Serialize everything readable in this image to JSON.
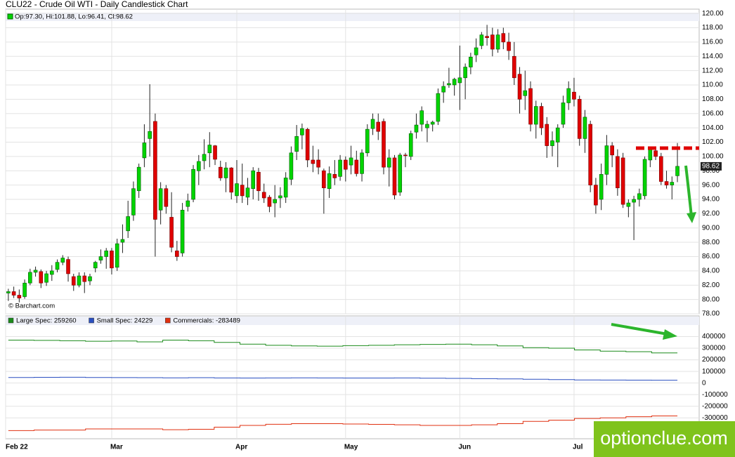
{
  "chart_data": [
    {
      "type": "candlestick",
      "title": "CLU22 - Crude Oil WTI - Daily Candlestick Chart",
      "ohlc_label": "Op:97.30, Hi:101.88, Lo:96.41, Cl:98.62",
      "last_price_label": "98.62",
      "credit": "© Barchart.com",
      "up_color": "#00d400",
      "down_color": "#e00000",
      "grid": true,
      "xlim": [
        -0.5,
        127
      ],
      "ylim": [
        78,
        120.6
      ],
      "yticks": [
        {
          "value": 120,
          "label": "120.00"
        },
        {
          "value": 118,
          "label": "118.00"
        },
        {
          "value": 116,
          "label": "116.00"
        },
        {
          "value": 114,
          "label": "114.00"
        },
        {
          "value": 112,
          "label": "112.00"
        },
        {
          "value": 110,
          "label": "110.00"
        },
        {
          "value": 108,
          "label": "108.00"
        },
        {
          "value": 106,
          "label": "106.00"
        },
        {
          "value": 104,
          "label": "104.00"
        },
        {
          "value": 102,
          "label": "102.00"
        },
        {
          "value": 100,
          "label": "100.00"
        },
        {
          "value": 98,
          "label": "98.00"
        },
        {
          "value": 96,
          "label": "96.00"
        },
        {
          "value": 94,
          "label": "94.00"
        },
        {
          "value": 92,
          "label": "92.00"
        },
        {
          "value": 90,
          "label": "90.00"
        },
        {
          "value": 88,
          "label": "88.00"
        },
        {
          "value": 86,
          "label": "86.00"
        },
        {
          "value": 84,
          "label": "84.00"
        },
        {
          "value": 82,
          "label": "82.00"
        },
        {
          "value": 80,
          "label": "80.00"
        },
        {
          "value": 78,
          "label": "78.00"
        }
      ],
      "ohlc": [
        [
          80.9,
          81.5,
          79.8,
          81.1
        ],
        [
          81.1,
          81.8,
          80.2,
          80.6
        ],
        [
          80.6,
          81.4,
          79.6,
          80.2
        ],
        [
          80.4,
          82.8,
          80.1,
          82.3
        ],
        [
          82.3,
          84.3,
          82.0,
          83.8
        ],
        [
          83.8,
          84.6,
          83.2,
          84.1
        ],
        [
          83.9,
          84.2,
          81.6,
          82.3
        ],
        [
          82.4,
          84.0,
          81.9,
          83.6
        ],
        [
          83.5,
          84.8,
          82.6,
          84.0
        ],
        [
          84.2,
          85.6,
          83.8,
          85.2
        ],
        [
          85.2,
          86.2,
          84.8,
          85.8
        ],
        [
          85.6,
          86.0,
          82.5,
          83.6
        ],
        [
          83.2,
          83.6,
          81.2,
          82.0
        ],
        [
          82.0,
          83.8,
          81.7,
          83.3
        ],
        [
          83.3,
          83.8,
          80.9,
          82.5
        ],
        [
          82.6,
          83.6,
          82.0,
          83.2
        ],
        [
          84.4,
          85.4,
          83.8,
          85.2
        ],
        [
          85.5,
          87.0,
          85.0,
          86.0
        ],
        [
          86.0,
          87.2,
          84.3,
          86.8
        ],
        [
          86.8,
          87.2,
          83.5,
          84.4
        ],
        [
          84.5,
          88.5,
          84.0,
          87.8
        ],
        [
          88.0,
          90.5,
          86.5,
          88.4
        ],
        [
          89.6,
          93.8,
          88.6,
          91.6
        ],
        [
          91.8,
          96.5,
          91.0,
          95.5
        ],
        [
          95.2,
          99.0,
          94.2,
          98.5
        ],
        [
          99.8,
          104.5,
          98.5,
          101.9
        ],
        [
          102.5,
          110.1,
          100.0,
          103.5
        ],
        [
          104.9,
          106.0,
          86.0,
          91.2
        ],
        [
          92.5,
          96.4,
          90.5,
          95.5
        ],
        [
          95.5,
          96.0,
          92.0,
          93.0
        ],
        [
          91.5,
          95.0,
          86.6,
          87.3
        ],
        [
          86.8,
          88.2,
          85.4,
          86.0
        ],
        [
          86.5,
          93.5,
          86.0,
          92.5
        ],
        [
          93.0,
          94.8,
          92.3,
          93.8
        ],
        [
          94.0,
          98.8,
          93.6,
          98.2
        ],
        [
          98.0,
          100.2,
          96.0,
          99.3
        ],
        [
          99.4,
          102.4,
          98.2,
          100.3
        ],
        [
          100.5,
          103.4,
          98.5,
          101.6
        ],
        [
          101.5,
          101.6,
          98.8,
          99.6
        ],
        [
          98.5,
          99.4,
          96.6,
          97.0
        ],
        [
          97.0,
          99.2,
          95.0,
          98.4
        ],
        [
          98.4,
          98.5,
          94.0,
          95.0
        ],
        [
          94.5,
          99.5,
          93.5,
          96.2
        ],
        [
          96.0,
          99.0,
          93.5,
          94.5
        ],
        [
          94.3,
          97.0,
          93.2,
          95.6
        ],
        [
          95.5,
          98.5,
          94.0,
          98.0
        ],
        [
          97.8,
          98.4,
          93.8,
          95.2
        ],
        [
          95.0,
          96.2,
          93.5,
          94.2
        ],
        [
          94.3,
          94.6,
          92.2,
          93.0
        ],
        [
          93.5,
          96.0,
          91.5,
          94.0
        ],
        [
          94.2,
          95.7,
          92.8,
          94.5
        ],
        [
          94.3,
          97.8,
          93.5,
          97.0
        ],
        [
          96.8,
          101.4,
          96.0,
          100.5
        ],
        [
          100.7,
          104.4,
          99.5,
          102.8
        ],
        [
          103.0,
          104.6,
          101.0,
          103.9
        ],
        [
          103.8,
          104.0,
          98.5,
          99.5
        ],
        [
          99.5,
          101.5,
          97.8,
          99.0
        ],
        [
          99.5,
          101.0,
          97.5,
          98.5
        ],
        [
          98.0,
          98.3,
          92.0,
          95.6
        ],
        [
          95.5,
          98.6,
          94.2,
          97.6
        ],
        [
          97.5,
          99.5,
          96.0,
          97.0
        ],
        [
          97.2,
          100.2,
          96.6,
          99.5
        ],
        [
          99.5,
          100.0,
          96.5,
          98.2
        ],
        [
          98.8,
          101.5,
          97.5,
          99.8
        ],
        [
          99.5,
          100.8,
          97.2,
          97.6
        ],
        [
          97.6,
          101.0,
          96.5,
          100.5
        ],
        [
          100.5,
          104.5,
          100.0,
          103.8
        ],
        [
          103.9,
          106.0,
          103.0,
          105.2
        ],
        [
          104.8,
          106.0,
          102.3,
          103.5
        ],
        [
          104.9,
          105.3,
          97.5,
          98.5
        ],
        [
          98.5,
          101.0,
          95.8,
          99.8
        ],
        [
          99.8,
          100.2,
          94.0,
          94.6
        ],
        [
          95.0,
          100.5,
          94.5,
          100.2
        ],
        [
          100.2,
          100.5,
          98.5,
          100.1
        ],
        [
          100.0,
          103.6,
          99.5,
          103.2
        ],
        [
          103.4,
          106.0,
          102.5,
          104.4
        ],
        [
          104.5,
          107.0,
          103.5,
          106.4
        ],
        [
          104.0,
          105.0,
          102.0,
          104.5
        ],
        [
          104.5,
          105.0,
          103.5,
          104.8
        ],
        [
          104.9,
          109.5,
          104.4,
          108.8
        ],
        [
          109.0,
          110.5,
          107.5,
          109.8
        ],
        [
          110.0,
          112.4,
          109.6,
          110.2
        ],
        [
          110.0,
          111.0,
          108.5,
          110.8
        ],
        [
          110.3,
          115.5,
          106.5,
          111.0
        ],
        [
          111.0,
          113.0,
          108.0,
          112.5
        ],
        [
          112.5,
          114.5,
          111.5,
          113.9
        ],
        [
          114.2,
          116.5,
          113.2,
          115.2
        ],
        [
          115.5,
          117.4,
          115.0,
          117.0
        ],
        [
          116.8,
          118.4,
          115.5,
          116.6
        ],
        [
          117.0,
          118.0,
          114.0,
          115.0
        ],
        [
          115.0,
          117.8,
          114.5,
          117.0
        ],
        [
          117.2,
          118.0,
          115.0,
          116.0
        ],
        [
          116.0,
          117.3,
          113.5,
          114.8
        ],
        [
          114.0,
          116.0,
          110.0,
          111.0
        ],
        [
          111.5,
          112.5,
          106.0,
          108.0
        ],
        [
          108.5,
          112.0,
          106.5,
          109.2
        ],
        [
          109.5,
          110.5,
          103.5,
          104.5
        ],
        [
          104.5,
          107.8,
          102.5,
          107.0
        ],
        [
          107.0,
          107.5,
          103.0,
          104.0
        ],
        [
          104.5,
          105.5,
          99.8,
          101.5
        ],
        [
          101.5,
          103.5,
          100.0,
          102.2
        ],
        [
          102.0,
          104.5,
          98.5,
          104.0
        ],
        [
          104.5,
          108.5,
          104.0,
          107.5
        ],
        [
          107.5,
          110.5,
          106.5,
          109.5
        ],
        [
          109.0,
          111.0,
          107.0,
          108.0
        ],
        [
          108.0,
          108.5,
          101.5,
          102.5
        ],
        [
          102.5,
          106.5,
          100.5,
          105.5
        ],
        [
          104.5,
          105.0,
          95.0,
          96.0
        ],
        [
          96.0,
          97.0,
          92.0,
          93.2
        ],
        [
          94.0,
          99.0,
          92.5,
          97.5
        ],
        [
          97.5,
          103.0,
          96.0,
          101.5
        ],
        [
          101.5,
          102.0,
          98.5,
          100.2
        ],
        [
          100.0,
          101.0,
          94.5,
          95.6
        ],
        [
          99.8,
          100.5,
          92.8,
          93.3
        ],
        [
          93.0,
          94.0,
          91.5,
          93.5
        ],
        [
          93.6,
          94.5,
          88.3,
          94.0
        ],
        [
          94.0,
          95.5,
          93.0,
          94.8
        ],
        [
          94.5,
          100.0,
          94.0,
          99.6
        ],
        [
          99.5,
          101.2,
          98.5,
          101.0
        ],
        [
          100.8,
          101.0,
          99.5,
          100.0
        ],
        [
          100.0,
          100.5,
          96.0,
          96.5
        ],
        [
          96.5,
          98.0,
          95.5,
          96.0
        ],
        [
          96.0,
          97.2,
          94.0,
          96.4
        ],
        [
          97.3,
          101.88,
          96.41,
          98.62
        ]
      ]
    },
    {
      "type": "line",
      "step": true,
      "grid": true,
      "xlim": [
        -0.5,
        127
      ],
      "xticks": [
        {
          "value": -0.5,
          "label": "Feb 22"
        },
        {
          "value": 19,
          "label": "Mar"
        },
        {
          "value": 42,
          "label": "Apr"
        },
        {
          "value": 62,
          "label": "May"
        },
        {
          "value": 83,
          "label": "Jun"
        },
        {
          "value": 104,
          "label": "Jul"
        }
      ],
      "ylim": [
        -480000,
        500000
      ],
      "yticks": [
        400000,
        300000,
        200000,
        100000,
        0,
        -100000,
        -200000,
        -300000
      ],
      "series": [
        {
          "name": "Large Spec: 259260",
          "color": "#1a8a1a",
          "values": [
            370000,
            368000,
            365000,
            360000,
            362000,
            355000,
            370000,
            365000,
            350000,
            335000,
            325000,
            320000,
            318000,
            322000,
            325000,
            330000,
            333000,
            335000,
            330000,
            320000,
            305000,
            300000,
            285000,
            275000,
            270000,
            259260
          ]
        },
        {
          "name": "Small Spec: 24229",
          "color": "#2a4fc0",
          "values": [
            48000,
            49000,
            50000,
            48000,
            47000,
            46000,
            45000,
            46000,
            44000,
            43000,
            44000,
            45000,
            44000,
            43000,
            43000,
            44000,
            42000,
            40000,
            38000,
            36000,
            33000,
            30000,
            27000,
            26000,
            25000,
            24229
          ]
        },
        {
          "name": "Commercials: -283489",
          "color": "#e03010",
          "values": [
            -410000,
            -405000,
            -405000,
            -395000,
            -395000,
            -395000,
            -402000,
            -398000,
            -380000,
            -365000,
            -355000,
            -350000,
            -350000,
            -353000,
            -356000,
            -360000,
            -365000,
            -365000,
            -360000,
            -350000,
            -330000,
            -320000,
            -305000,
            -300000,
            -290000,
            -283489
          ]
        }
      ]
    }
  ]
}
